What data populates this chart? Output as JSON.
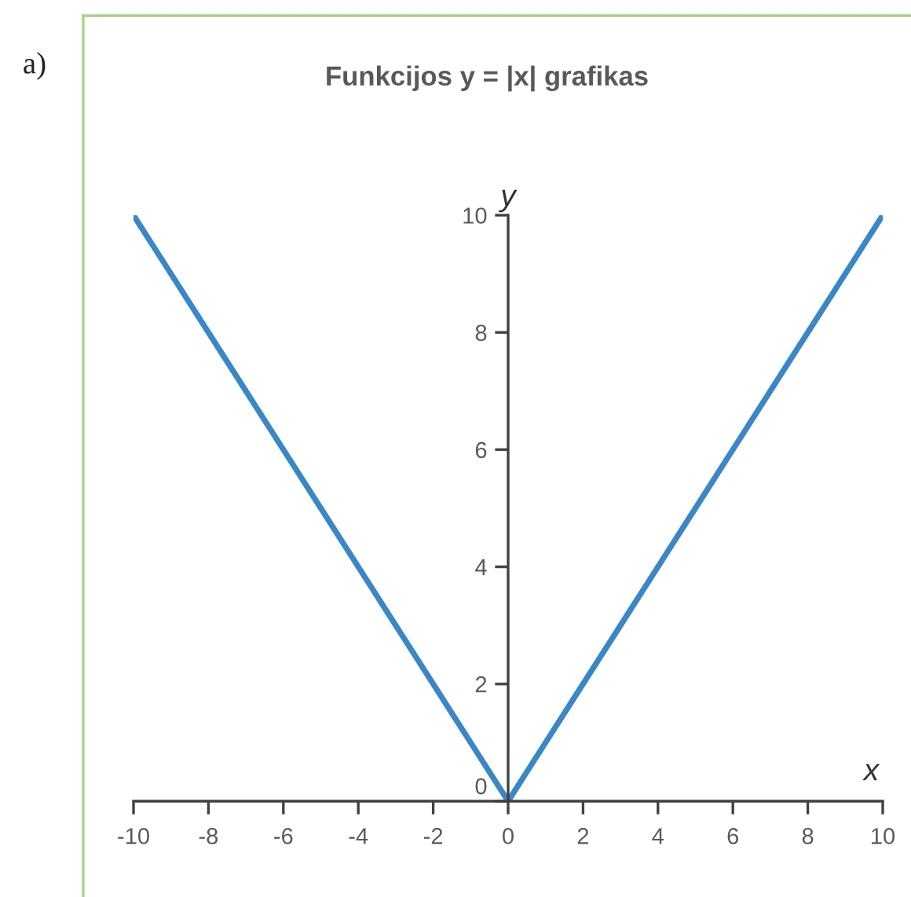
{
  "chart_data": {
    "type": "line",
    "title": "Funkcijos y = |x| grafikas",
    "xlabel": "x",
    "ylabel": "y",
    "annotations": [
      "a)"
    ],
    "x": [
      -10,
      -9,
      -8,
      -7,
      -6,
      -5,
      -4,
      -3,
      -2,
      -1,
      0,
      1,
      2,
      3,
      4,
      5,
      6,
      7,
      8,
      9,
      10
    ],
    "series": [
      {
        "color": "#3a87c8",
        "values": [
          10,
          9,
          8,
          7,
          6,
          5,
          4,
          3,
          2,
          1,
          0,
          1,
          2,
          3,
          4,
          5,
          6,
          7,
          8,
          9,
          10
        ]
      }
    ],
    "xlim": [
      -10,
      10
    ],
    "ylim": [
      0,
      10
    ],
    "xticks": [
      -10,
      -8,
      -6,
      -4,
      -2,
      0,
      2,
      4,
      6,
      8,
      10
    ],
    "yticks": [
      0,
      2,
      4,
      6,
      8,
      10
    ],
    "line_style": "solid"
  }
}
